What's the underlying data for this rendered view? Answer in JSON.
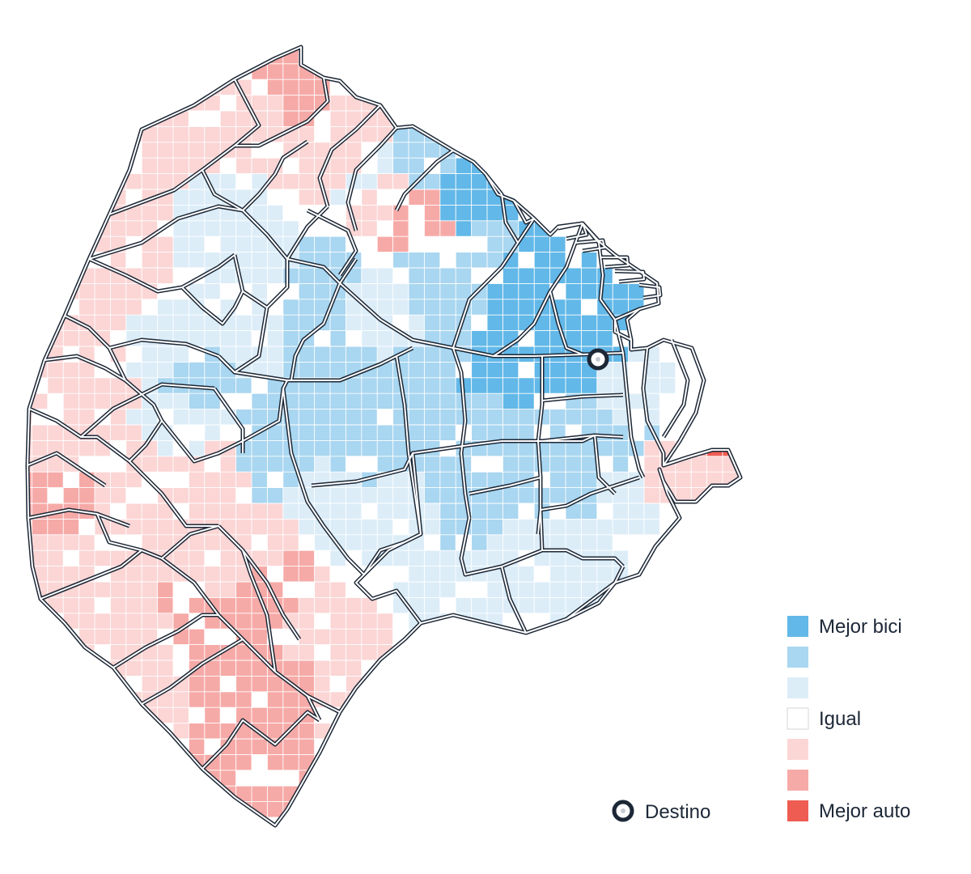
{
  "legend": {
    "items": [
      {
        "label": "Mejor bici",
        "color": "#62b8e8"
      },
      {
        "label": "",
        "color": "#a9d6f0"
      },
      {
        "label": "",
        "color": "#dcedf8"
      },
      {
        "label": "Igual",
        "color": "#ffffff"
      },
      {
        "label": "",
        "color": "#fbd6d5"
      },
      {
        "label": "",
        "color": "#f6aaa7"
      },
      {
        "label": "Mejor auto",
        "color": "#ee5c52"
      }
    ],
    "destination_label": "Destino"
  },
  "colors": {
    "boundary_stroke": "#1c2736",
    "grid_line": "#ffffff",
    "destination_marker": "#1c2736"
  },
  "icons": {
    "destination": "ring-marker-icon"
  }
}
